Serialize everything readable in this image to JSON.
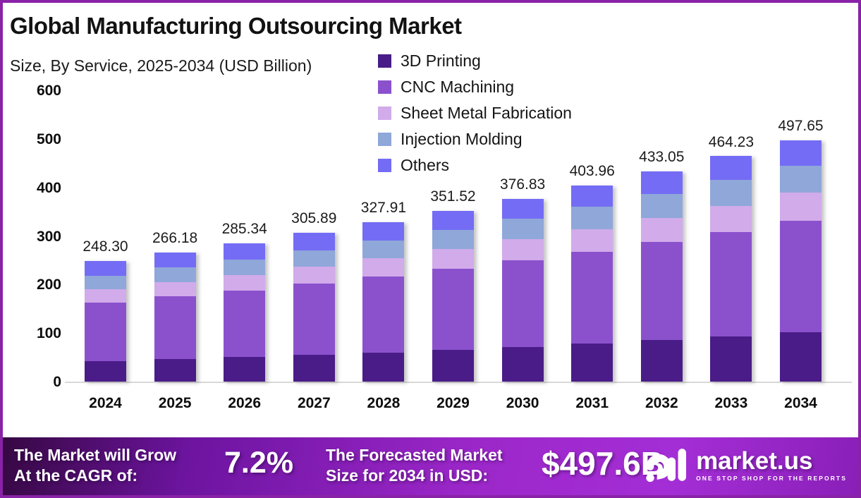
{
  "frame": {
    "border_color": "#8A22A8",
    "background": "#FFFFFF"
  },
  "header": {
    "title": "Global Manufacturing Outsourcing Market",
    "subtitle": "Size, By Service, 2025-2034 (USD Billion)"
  },
  "chart_data": {
    "type": "bar",
    "stacked": true,
    "title": "Global Manufacturing Outsourcing Market Size, By Service, 2025-2034 (USD Billion)",
    "categories": [
      "2024",
      "2025",
      "2026",
      "2027",
      "2028",
      "2029",
      "2030",
      "2031",
      "2032",
      "2033",
      "2034"
    ],
    "totals": [
      248.3,
      266.18,
      285.34,
      305.89,
      327.91,
      351.52,
      376.83,
      403.96,
      433.05,
      464.23,
      497.65
    ],
    "total_labels": [
      "248.30",
      "266.18",
      "285.34",
      "305.89",
      "327.91",
      "351.52",
      "376.83",
      "403.96",
      "433.05",
      "464.23",
      "497.65"
    ],
    "series": [
      {
        "name": "3D Printing",
        "color": "#4A1C87",
        "values": [
          42.2,
          46.2,
          50.4,
          55.1,
          60.2,
          65.7,
          71.7,
          78.3,
          85.4,
          93.1,
          101.5
        ]
      },
      {
        "name": "CNC Machining",
        "color": "#8B51CD",
        "values": [
          120.9,
          129.0,
          137.5,
          146.7,
          156.4,
          166.8,
          177.9,
          189.7,
          202.2,
          215.6,
          229.9
        ]
      },
      {
        "name": "Sheet Metal Fabrication",
        "color": "#D1ABEA",
        "values": [
          27.8,
          29.9,
          32.2,
          34.6,
          37.3,
          40.1,
          43.1,
          46.4,
          49.9,
          53.7,
          57.7
        ]
      },
      {
        "name": "Injection Molding",
        "color": "#8FA7D9",
        "values": [
          27.8,
          29.8,
          32.0,
          34.4,
          36.9,
          39.5,
          42.4,
          45.5,
          48.8,
          52.4,
          56.2
        ]
      },
      {
        "name": "Others",
        "color": "#746CF5",
        "values": [
          29.5,
          31.3,
          33.2,
          35.1,
          37.2,
          39.4,
          41.7,
          44.1,
          46.7,
          49.4,
          52.3
        ]
      }
    ],
    "ylim": [
      0,
      600
    ],
    "yticks": [
      0,
      100,
      200,
      300,
      400,
      500,
      600
    ],
    "grid": false,
    "legend_position": "top-right"
  },
  "banner": {
    "cagr_label_line1": "The Market will Grow",
    "cagr_label_line2": "At the CAGR of:",
    "cagr_value": "7.2%",
    "forecast_label_line1": "The Forecasted Market",
    "forecast_label_line2": "Size for 2034 in USD:",
    "forecast_value": "$497.6B",
    "logo_text": "market.us",
    "logo_tagline": "ONE STOP SHOP FOR THE REPORTS"
  }
}
